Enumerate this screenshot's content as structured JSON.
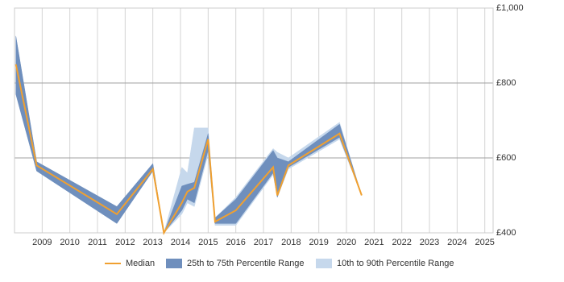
{
  "chart_data": {
    "type": "line",
    "x": [
      2008.05,
      2008.8,
      2011.7,
      2013.0,
      2013.4,
      2014.05,
      2014.25,
      2014.5,
      2015.0,
      2015.25,
      2016.0,
      2017.35,
      2017.5,
      2017.9,
      2019.75,
      2020.55
    ],
    "series": [
      {
        "name": "Median",
        "color": "#f0a030",
        "values": [
          850,
          580,
          450,
          570,
          400,
          480,
          510,
          520,
          650,
          430,
          460,
          575,
          500,
          580,
          665,
          500
        ]
      },
      {
        "name": "25th to 75th Percentile Range",
        "color": "#6f8fbd",
        "lower": [
          770,
          565,
          425,
          565,
          400,
          460,
          490,
          480,
          620,
          425,
          425,
          560,
          495,
          575,
          655,
          500
        ],
        "upper": [
          925,
          590,
          470,
          585,
          400,
          525,
          530,
          535,
          665,
          440,
          490,
          620,
          600,
          590,
          690,
          500
        ]
      },
      {
        "name": "10th to 90th Percentile Range",
        "color": "#c6d8ec",
        "lower": [
          770,
          565,
          425,
          565,
          400,
          450,
          480,
          470,
          610,
          420,
          420,
          555,
          495,
          570,
          650,
          500
        ],
        "upper": [
          925,
          590,
          470,
          585,
          400,
          575,
          560,
          680,
          680,
          440,
          495,
          625,
          615,
          600,
          695,
          500
        ]
      }
    ],
    "xlim": [
      2008,
      2025.3
    ],
    "xticks": [
      2009,
      2010,
      2011,
      2012,
      2013,
      2014,
      2015,
      2016,
      2017,
      2018,
      2019,
      2020,
      2021,
      2022,
      2023,
      2024,
      2025
    ],
    "ylim": [
      400,
      1000
    ],
    "yticks": [
      {
        "value": 400,
        "label": "£400"
      },
      {
        "value": 600,
        "label": "£600"
      },
      {
        "value": 800,
        "label": "£800"
      },
      {
        "value": 1000,
        "label": "£1,000"
      }
    ],
    "grid": true
  }
}
